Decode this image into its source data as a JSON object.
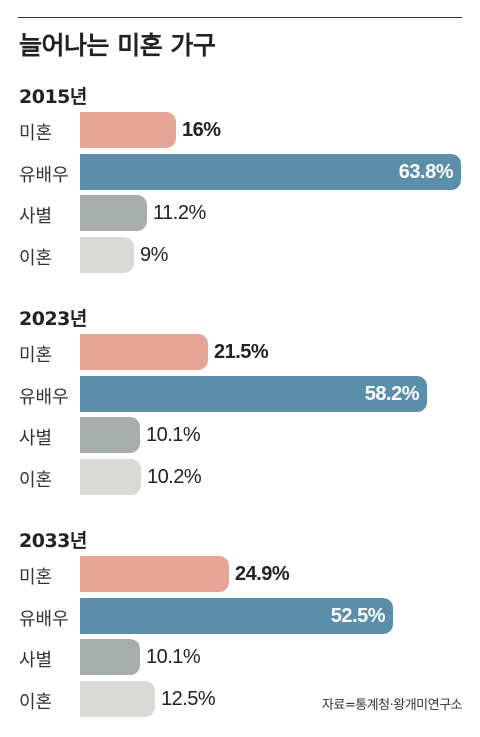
{
  "title": "늘어나는 미혼 가구",
  "source": "자료=통계청·왕개미연구소",
  "colors": {
    "미혼": "#e6a497",
    "유배우": "#5b8fa9",
    "사별": "#a7adab",
    "이혼": "#d9dad6"
  },
  "chart_data": {
    "type": "bar",
    "orientation": "horizontal",
    "unit": "%",
    "categories": [
      "미혼",
      "유배우",
      "사별",
      "이혼"
    ],
    "xlim": [
      0,
      64
    ],
    "groups": [
      {
        "year": "2015년",
        "values": [
          16,
          63.8,
          11.2,
          9
        ],
        "labels": [
          "16%",
          "63.8%",
          "11.2%",
          "9%"
        ]
      },
      {
        "year": "2023년",
        "values": [
          21.5,
          58.2,
          10.1,
          10.2
        ],
        "labels": [
          "21.5%",
          "58.2%",
          "10.1%",
          "10.2%"
        ]
      },
      {
        "year": "2033년",
        "values": [
          24.9,
          52.5,
          10.1,
          12.5
        ],
        "labels": [
          "24.9%",
          "52.5%",
          "10.1%",
          "12.5%"
        ]
      }
    ]
  }
}
